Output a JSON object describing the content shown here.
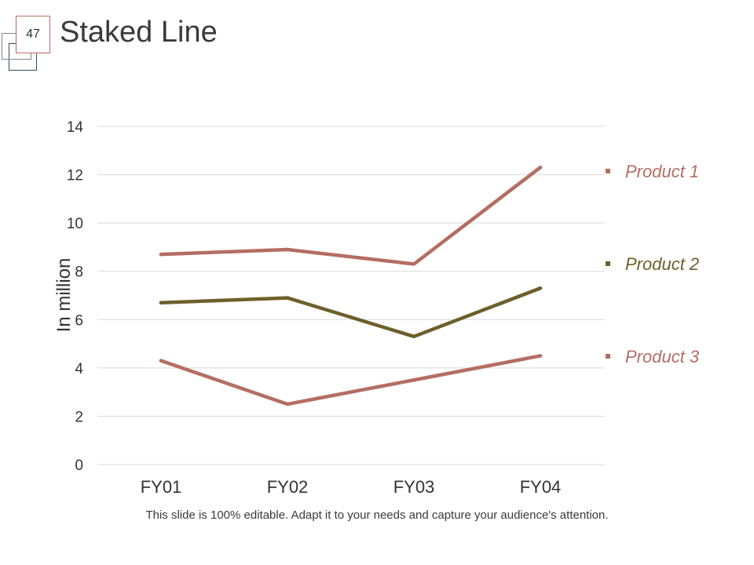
{
  "slide": {
    "number": "47",
    "title": "Staked Line",
    "footer": "This slide is 100% editable. Adapt it to your needs and capture your audience's attention."
  },
  "colors": {
    "product1": "#b56d63",
    "product2": "#6d5f2b",
    "product3": "#b56d63",
    "grid": "#d9d9d9",
    "text": "#333333"
  },
  "chart_data": {
    "type": "line",
    "title": "",
    "xlabel": "",
    "ylabel": "In million",
    "categories": [
      "FY01",
      "FY02",
      "FY03",
      "FY04"
    ],
    "ylim": [
      0,
      14
    ],
    "yticks": [
      0,
      2,
      4,
      6,
      8,
      10,
      12,
      14
    ],
    "grid": true,
    "legend_position": "right",
    "series": [
      {
        "name": "Product 1",
        "values": [
          8.7,
          8.9,
          8.3,
          12.3
        ]
      },
      {
        "name": "Product 2",
        "values": [
          6.7,
          6.9,
          5.3,
          7.3
        ]
      },
      {
        "name": "Product 3",
        "values": [
          4.3,
          2.5,
          3.5,
          4.5
        ]
      }
    ]
  }
}
